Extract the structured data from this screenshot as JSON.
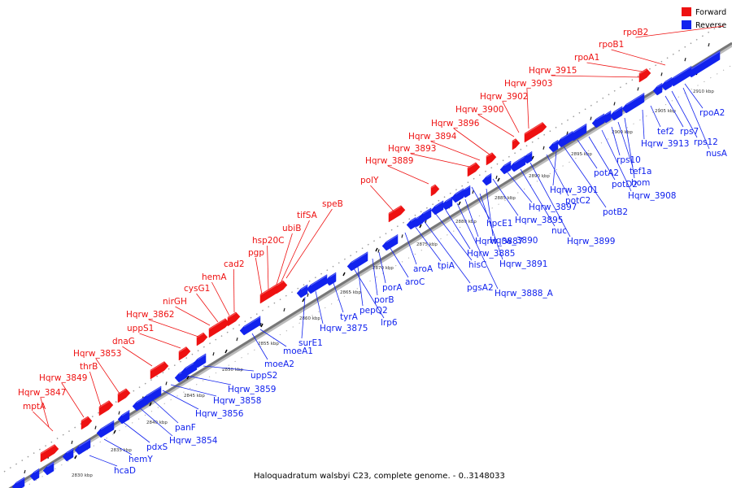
{
  "caption": "Haloquadratum walsbyi C23, complete genome. - 0..3148033",
  "legend": {
    "forward": "Forward",
    "reverse": "Reverse"
  },
  "colors": {
    "forward": "#ee1111",
    "reverse": "#1122ee",
    "line": "#333333",
    "axis": "#888888"
  },
  "axis_ticks": [
    "2830 kbp",
    "2835 kbp",
    "2840 kbp",
    "2845 kbp",
    "2850 kbp",
    "2855 kbp",
    "2860 kbp",
    "2865 kbp",
    "2870 kbp",
    "2875 kbp",
    "2880 kbp",
    "2885 kbp",
    "2890 kbp",
    "2895 kbp",
    "2900 kbp",
    "2905 kbp",
    "2910 kbp"
  ],
  "forward_labels": [
    "mptA",
    "Hqrw_3847",
    "Hqrw_3849",
    "thrB",
    "Hqrw_3853",
    "dnaG",
    "uppS1",
    "Hqrw_3862",
    "nirGH",
    "cysG1",
    "hemA",
    "cad2",
    "pgp",
    "hsp20C",
    "ubiB",
    "tifSA",
    "speB",
    "polY",
    "Hqrw_3889",
    "Hqrw_3893",
    "Hqrw_3894",
    "Hqrw_3896",
    "Hqrw_3900",
    "Hqrw_3902",
    "Hqrw_3903",
    "Hqrw_3915",
    "rpoA1",
    "rpoB1",
    "rpoB2"
  ],
  "reverse_labels": [
    "hcaD",
    "hemY",
    "pdxS",
    "Hqrw_3854",
    "panF",
    "Hqrw_3856",
    "Hqrw_3858",
    "Hqrw_3859",
    "uppS2",
    "moeA2",
    "moeA1",
    "surE1",
    "Hqrw_3875",
    "tyrA",
    "lrp6",
    "pepQ2",
    "porB",
    "porA",
    "aroC",
    "aroA",
    "tpiA",
    "pgsA2",
    "hisC",
    "Hqrw_3885",
    "Hqrw_3888_A",
    "Hqrw_3887",
    "Hqrw_3891",
    "Hqrw_3890",
    "hpcE1",
    "Hqrw_3895",
    "Hqrw_3897",
    "nuc",
    "Hqrw_3899",
    "potC2",
    "Hqrw_3901",
    "potB2",
    "potA2",
    "potD2",
    "Hqrw_3908",
    "rps10",
    "tef1a",
    "hom",
    "Hqrw_3913",
    "tef2",
    "rps7",
    "rps12",
    "nusA",
    "rpoA2"
  ]
}
